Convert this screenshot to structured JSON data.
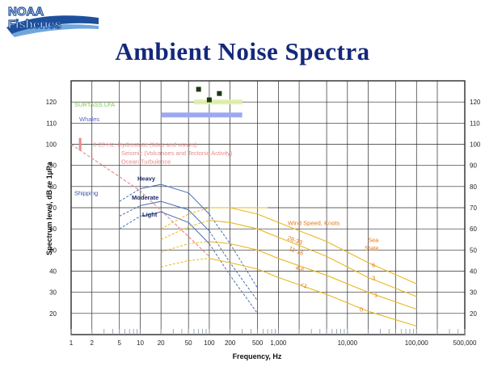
{
  "logo": {
    "line1": "NOAA",
    "line2": "Fisheries"
  },
  "slide_title": "Ambient Noise Spectra",
  "colors": {
    "title": "#14287a",
    "grid": "#2b2b2b",
    "shipping": "#4a6fb5",
    "wind": "#e8b820",
    "wind_text": "#e07818",
    "seismic": "#e88a8a",
    "whales_bar": "#9ea8f0",
    "surtass": "#7ec84a",
    "marker": "#1c3a12"
  },
  "chart_data": {
    "type": "line",
    "xlabel": "Frequency, Hz",
    "ylabel": "Spectrum level, dB re 1µPa",
    "xscale": "log",
    "xlim": [
      1,
      500000
    ],
    "ylim": [
      10,
      130
    ],
    "x_ticks": [
      "1",
      "2",
      "5",
      "10",
      "20",
      "50",
      "100",
      "200",
      "500",
      "1,000",
      "10,000",
      "100,000",
      "500,000"
    ],
    "x_tick_values": [
      1,
      2,
      5,
      10,
      20,
      50,
      100,
      200,
      500,
      1000,
      10000,
      100000,
      500000
    ],
    "y_ticks": [
      20,
      30,
      40,
      50,
      60,
      70,
      80,
      90,
      100,
      110,
      120
    ],
    "grid": true,
    "annotations": {
      "surtass": "SURTASS LFA",
      "whales": "Whales",
      "hydrostatic": "0-20 Hz: Hydrostatic (tides and waves)",
      "seismic": "Seismic (Volcanoes and Tectonic Activity)",
      "turbulence": "Ocean Turbulence",
      "shipping": "Shipping",
      "heavy": "Heavy",
      "moderate": "Moderate",
      "light": "Light",
      "wind_speed": "Wind Speed, Knots",
      "sea_state_line1": "Sea",
      "sea_state_line2": "State"
    },
    "whales_band": [
      20,
      300
    ],
    "surtass_markers": [
      {
        "x": 70,
        "y": 126
      },
      {
        "x": 140,
        "y": 124
      },
      {
        "x": 100,
        "y": 121
      }
    ],
    "shipping_series": [
      {
        "name": "Heavy",
        "x": [
          5,
          10,
          20,
          50,
          100,
          200,
          500
        ],
        "y": [
          73,
          79,
          81,
          77,
          67,
          53,
          32
        ]
      },
      {
        "name": "Moderate",
        "x": [
          5,
          10,
          20,
          50,
          100,
          200,
          500
        ],
        "y": [
          66,
          71,
          73,
          69,
          59,
          44,
          26
        ]
      },
      {
        "name": "Light",
        "x": [
          5,
          10,
          20,
          50,
          100,
          200,
          500
        ],
        "y": [
          60,
          66,
          68,
          63,
          53,
          38,
          20
        ]
      }
    ],
    "wind_series": [
      {
        "label": "28-33",
        "x": [
          20,
          50,
          100,
          200,
          500,
          1000,
          5000,
          20000,
          100000
        ],
        "y": [
          60,
          67,
          70,
          70,
          67,
          63,
          54,
          44,
          34
        ]
      },
      {
        "label": "11-16",
        "x": [
          20,
          50,
          100,
          200,
          500,
          1000,
          5000,
          20000,
          100000
        ],
        "y": [
          55,
          61,
          64,
          63,
          60,
          56,
          47,
          37,
          28
        ]
      },
      {
        "label": "4-6",
        "x": [
          20,
          50,
          100,
          200,
          500,
          1000,
          5000,
          20000,
          100000
        ],
        "y": [
          49,
          53,
          54,
          53,
          50,
          46,
          38,
          30,
          22
        ]
      },
      {
        "label": "<1",
        "x": [
          20,
          50,
          100,
          200,
          500,
          1000,
          5000,
          20000,
          100000
        ],
        "y": [
          42,
          45,
          46,
          44,
          41,
          37,
          29,
          21,
          14
        ]
      }
    ],
    "sea_state_labels": [
      "6",
      "3",
      "1",
      "0"
    ],
    "seismic_line": {
      "x": [
        1,
        10,
        100
      ],
      "y": [
        100,
        78,
        47
      ]
    }
  }
}
